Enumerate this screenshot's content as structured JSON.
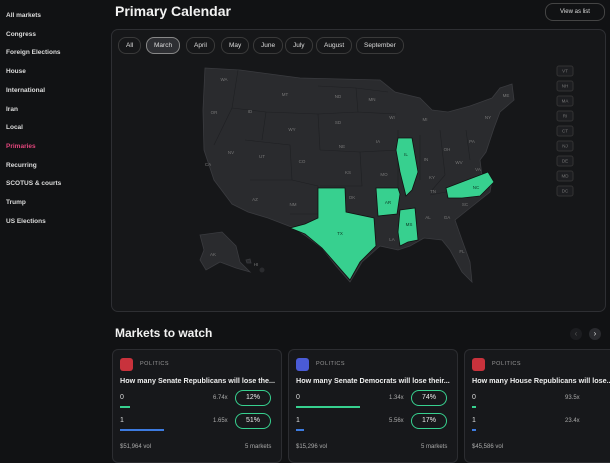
{
  "sidebar": [
    "All markets",
    "Congress",
    "Foreign Elections",
    "House",
    "International",
    "Iran",
    "Local",
    "Primaries",
    "Recurring",
    "SCOTUS & courts",
    "Trump",
    "US Elections"
  ],
  "header": {
    "title": "Primary Calendar",
    "button": "View as list"
  },
  "months": [
    "All",
    "March",
    "April",
    "May",
    "June",
    "July",
    "August",
    "September"
  ],
  "map": {
    "labels": [
      "WA",
      "MT",
      "ND",
      "MN",
      "OR",
      "ID",
      "SD",
      "WI",
      "MI",
      "WY",
      "NE",
      "IA",
      "IL",
      "IN",
      "OH",
      "PA",
      "NY",
      "NV",
      "UT",
      "CO",
      "KS",
      "MO",
      "KY",
      "WV",
      "VA",
      "CA",
      "AZ",
      "NM",
      "OK",
      "AR",
      "TN",
      "NC",
      "SC",
      "TX",
      "LA",
      "MS",
      "AL",
      "GA",
      "FL",
      "AK",
      "HI",
      "ME"
    ],
    "small_states": [
      "VT",
      "NH",
      "MA",
      "RI",
      "CT",
      "NJ",
      "DE",
      "MD",
      "DC"
    ]
  },
  "markets": {
    "title": "Markets to watch",
    "cards": [
      {
        "tag": "POLITICS",
        "question": "How many Senate Republicans will lose the...",
        "outcomes": [
          {
            "name": "0",
            "payout": "6.74x",
            "chance": "12%"
          },
          {
            "name": "1",
            "payout": "1.65x",
            "chance": "51%"
          }
        ],
        "volume": "$51,964 vol",
        "count": "5 markets"
      },
      {
        "tag": "POLITICS",
        "question": "How many Senate Democrats will lose their...",
        "outcomes": [
          {
            "name": "0",
            "payout": "1.34x",
            "chance": "74%"
          },
          {
            "name": "1",
            "payout": "5.56x",
            "chance": "17%"
          }
        ],
        "volume": "$15,296 vol",
        "count": "5 markets"
      },
      {
        "tag": "POLITICS",
        "question": "How many House Republicans will lose...",
        "outcomes": [
          {
            "name": "0",
            "payout": "93.5x"
          },
          {
            "name": "1",
            "payout": "23.4x"
          }
        ],
        "volume": "$45,586 vol"
      }
    ]
  }
}
